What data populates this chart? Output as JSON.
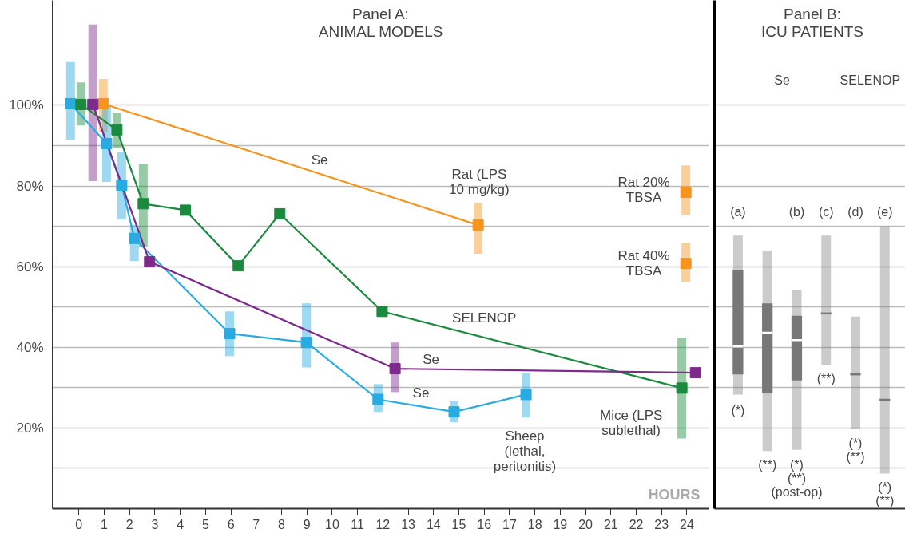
{
  "chart_data": [
    {
      "type": "line",
      "title": "Panel A:",
      "subtitle": "ANIMAL MODELS",
      "xlabel": "HOURS",
      "xlim": [
        -1.05,
        24.9
      ],
      "xticks": [
        0,
        1,
        2,
        3,
        4,
        5,
        6,
        7,
        8,
        9,
        10,
        11,
        12,
        13,
        14,
        15,
        16,
        17,
        18,
        19,
        20,
        21,
        22,
        23,
        24
      ],
      "ylim": [
        0,
        126
      ],
      "yticks": [
        {
          "value": 10,
          "label": null
        },
        {
          "value": 20,
          "label": "20%"
        },
        {
          "value": 30,
          "label": null
        },
        {
          "value": 40,
          "label": "40%"
        },
        {
          "value": 50,
          "label": null
        },
        {
          "value": 60,
          "label": "60%"
        },
        {
          "value": 70,
          "label": null
        },
        {
          "value": 80,
          "label": "80%"
        },
        {
          "value": 90,
          "label": null
        },
        {
          "value": 100,
          "label": "100%"
        }
      ],
      "grid": "y",
      "marker": "square",
      "line_style": "solid",
      "series": [
        {
          "color": "#f7941d",
          "x": [
            0.96,
            15.76
          ],
          "values": [
            100.4,
            70.3
          ],
          "errors": [
            [
              93.3,
              106.5
            ],
            [
              63.2,
              75.8
            ]
          ]
        },
        {
          "type": "scatter",
          "color": "#f7941d",
          "x": [
            23.96,
            23.96
          ],
          "values": [
            78.4,
            60.8
          ],
          "errors": [
            [
              72.7,
              85.1
            ],
            [
              56.2,
              65.9
            ]
          ]
        },
        {
          "color": "#29abe2",
          "x": [
            -0.33,
            1.09,
            1.69,
            2.19,
            5.95,
            8.98,
            11.81,
            14.81,
            17.65
          ],
          "values": [
            100.4,
            90.5,
            80.2,
            67,
            43.4,
            41.2,
            27.1,
            24,
            28.3
          ],
          "errors": [
            [
              91.3,
              110.7
            ],
            [
              81,
              99.8
            ],
            [
              71.7,
              88.5
            ],
            [
              61.4,
              70.3
            ],
            [
              37.8,
              48.9
            ],
            [
              35,
              50.9
            ],
            [
              24,
              30.9
            ],
            [
              21.4,
              26.7
            ],
            [
              22.6,
              33.7
            ]
          ]
        },
        {
          "color": "#1a8a3e",
          "x": [
            0.08,
            1.5,
            2.54,
            4.2,
            6.29,
            7.93,
            11.97,
            23.8
          ],
          "values": [
            100.2,
            93.9,
            75.6,
            74,
            60.2,
            73.1,
            48.9,
            29.9
          ],
          "errors": [
            [
              95,
              105.7
            ],
            [
              89.5,
              98
            ],
            [
              65,
              85.5
            ],
            null,
            null,
            null,
            null,
            [
              17.4,
              42.4
            ]
          ]
        },
        {
          "color": "#7d2a8b",
          "x": [
            0.55,
            2.79,
            12.48,
            24.34
          ],
          "values": [
            100.2,
            61.2,
            34.7,
            33.7
          ],
          "errors": [
            [
              81.2,
              120
            ],
            null,
            [
              28.9,
              41.2
            ],
            null
          ]
        }
      ],
      "annotations": [
        "Se",
        "Rat (LPS\n10 mg/kg)",
        "Rat 20%\nTBSA",
        "Rat 40%\nTBSA",
        "SELENOP",
        "Se",
        "Se",
        "Sheep\n(lethal,\nperitonitis)",
        "Mice (LPS\nsublethal)"
      ]
    },
    {
      "type": "box",
      "title": "Panel B:",
      "subtitle": "ICU PATIENTS",
      "categories": [
        "(a)",
        null,
        "(b)",
        "(c)",
        "(d)",
        "(e)"
      ],
      "ylim": [
        0,
        126
      ],
      "yticks": [
        10,
        20,
        30,
        40,
        50,
        60,
        70,
        80,
        90,
        100
      ],
      "grid": "y",
      "tick_labels": false,
      "series": [
        {
          "color": "#777777",
          "boxes": [
            {
              "low": 28.3,
              "q1": 33.3,
              "median": 40.2,
              "q3": 59.2,
              "high": 67.7
            },
            {
              "low": 14.3,
              "q1": 28.7,
              "median": 43.6,
              "q3": 50.9,
              "high": 64
            },
            {
              "low": 14.6,
              "q1": 31.8,
              "median": 41.8,
              "q3": 47.8,
              "high": 54.3
            },
            {
              "low": 35.7,
              "q1": 48.4,
              "median": 48.4,
              "q3": 48.4,
              "high": 67.7
            },
            {
              "low": 19.7,
              "q1": 33.3,
              "median": 33.3,
              "q3": 33.3,
              "high": 47.6
            },
            {
              "low": 8.7,
              "q1": 27,
              "median": 27,
              "q3": 27,
              "high": 70
            }
          ]
        }
      ],
      "annotations": [
        "Se",
        "SELENOP",
        "(*)",
        "(**)",
        "(*)\n(**)\n(post-op)",
        "(**)",
        "(*)\n(**)",
        "(*)\n(**)"
      ]
    }
  ]
}
